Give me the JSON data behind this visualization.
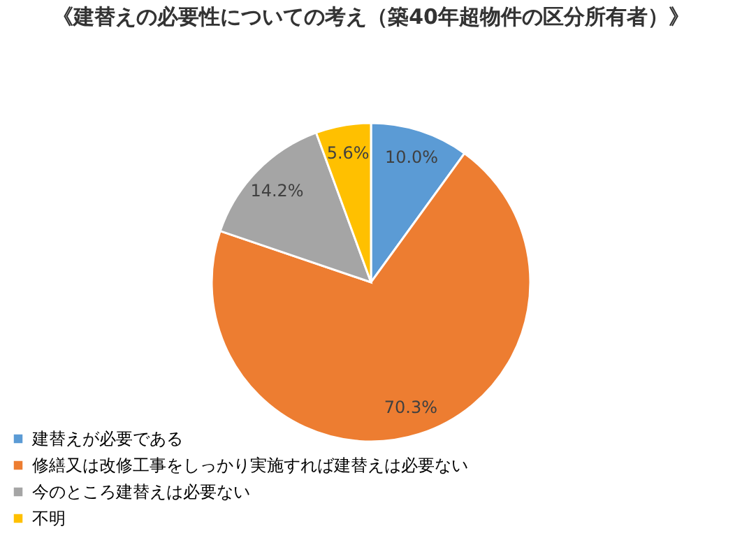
{
  "chart_data": {
    "type": "pie",
    "title": "《建替えの必要性についての考え（築40年超物件の区分所有者）》",
    "categories": [
      "建替えが必要である",
      "修繕又は改修工事をしっかり実施すれば建替えは必要ない",
      "今のところ建替えは必要ない",
      "不明"
    ],
    "values": [
      10.0,
      70.3,
      14.2,
      5.6
    ],
    "colors": [
      "#5b9bd5",
      "#ed7d31",
      "#a5a5a5",
      "#ffc000"
    ],
    "value_labels": [
      "10.0%",
      "70.3%",
      "14.2%",
      "5.6%"
    ],
    "legend": "bottom left"
  }
}
